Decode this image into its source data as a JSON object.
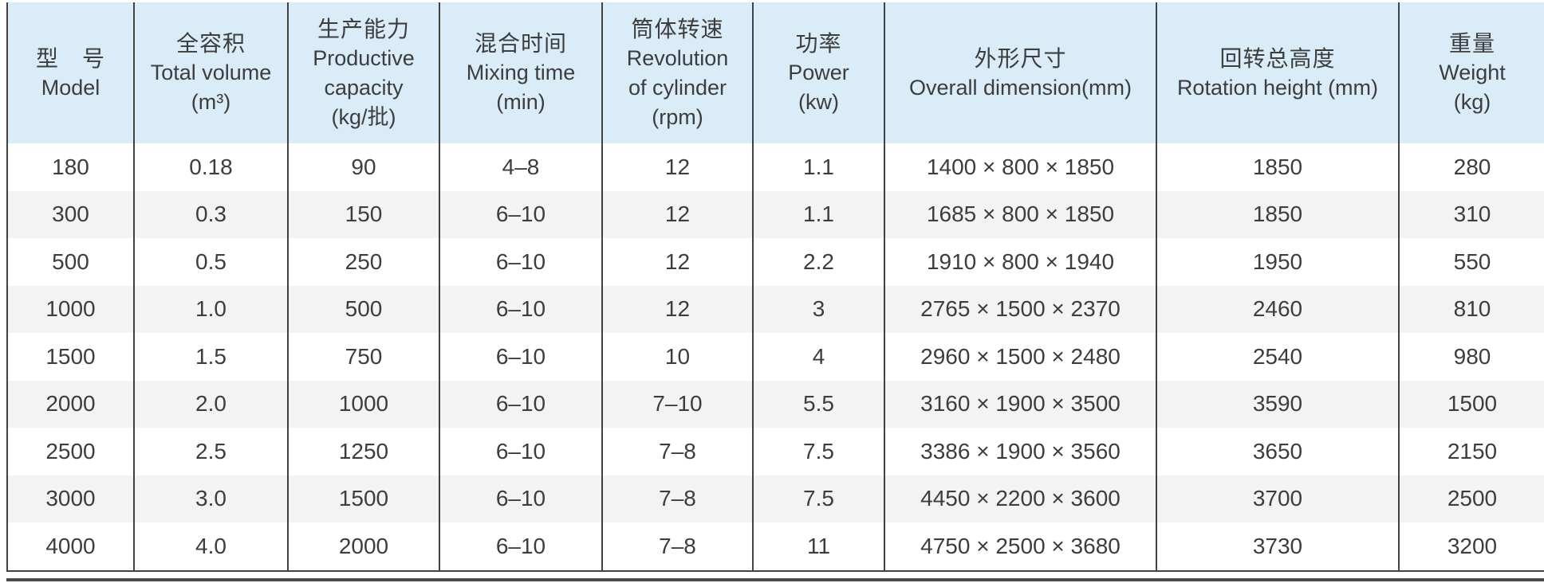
{
  "table": {
    "columns": [
      {
        "zh": "型　号",
        "en": "Model",
        "unit": ""
      },
      {
        "zh": "全容积",
        "en": "Total volume",
        "unit": "(m³)"
      },
      {
        "zh": "生产能力",
        "en": "Productive\ncapacity",
        "unit": "(kg/批)"
      },
      {
        "zh": "混合时间",
        "en": "Mixing time",
        "unit": "(min)"
      },
      {
        "zh": "筒体转速",
        "en": "Revolution\nof cylinder",
        "unit": "(rpm)"
      },
      {
        "zh": "功率",
        "en": "Power",
        "unit": "(kw)"
      },
      {
        "zh": "外形尺寸",
        "en": "Overall dimension(mm)",
        "unit": ""
      },
      {
        "zh": "回转总高度",
        "en": "Rotation height (mm)",
        "unit": ""
      },
      {
        "zh": "重量",
        "en": "Weight",
        "unit": "(kg)"
      }
    ],
    "rows": [
      [
        "180",
        "0.18",
        "90",
        "4–8",
        "12",
        "1.1",
        "1400 × 800 × 1850",
        "1850",
        "280"
      ],
      [
        "300",
        "0.3",
        "150",
        "6–10",
        "12",
        "1.1",
        "1685 × 800 × 1850",
        "1850",
        "310"
      ],
      [
        "500",
        "0.5",
        "250",
        "6–10",
        "12",
        "2.2",
        "1910 × 800 × 1940",
        "1950",
        "550"
      ],
      [
        "1000",
        "1.0",
        "500",
        "6–10",
        "12",
        "3",
        "2765 × 1500 × 2370",
        "2460",
        "810"
      ],
      [
        "1500",
        "1.5",
        "750",
        "6–10",
        "10",
        "4",
        "2960 × 1500 × 2480",
        "2540",
        "980"
      ],
      [
        "2000",
        "2.0",
        "1000",
        "6–10",
        "7–10",
        "5.5",
        "3160 × 1900 × 3500",
        "3590",
        "1500"
      ],
      [
        "2500",
        "2.5",
        "1250",
        "6–10",
        "7–8",
        "7.5",
        "3386 × 1900 × 3560",
        "3650",
        "2150"
      ],
      [
        "3000",
        "3.0",
        "1500",
        "6–10",
        "7–8",
        "7.5",
        "4450 × 2200 × 3600",
        "3700",
        "2500"
      ],
      [
        "4000",
        "4.0",
        "2000",
        "6–10",
        "7–8",
        "11",
        "4750 × 2500 × 3680",
        "3730",
        "3200"
      ]
    ]
  },
  "colors": {
    "header_bg": "#d9ecf8",
    "stripe_bg": "#f3f3f3",
    "border": "#414141",
    "text": "#3d3d3d",
    "bottom_rule": "#4a4a4a"
  }
}
